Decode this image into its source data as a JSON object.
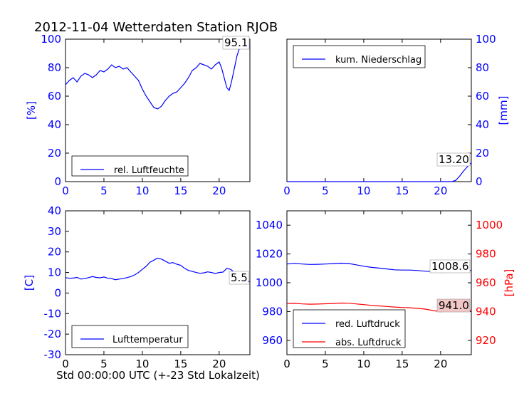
{
  "figure": {
    "title": "2012-11-04 Wetterdaten Station RJOB",
    "xlabel": "Std 00:00:00 UTC (+-23 Std Lokalzeit)"
  },
  "colors": {
    "blue": "#0000ff",
    "red": "#ff0000",
    "black": "#000000",
    "annot_pink": "#f4c7c7"
  },
  "chart_data": [
    {
      "id": "humidity",
      "type": "line",
      "ylabel": "[%]",
      "xlim": [
        0,
        24
      ],
      "ylim": [
        0,
        100
      ],
      "xticks": [
        "0",
        "5",
        "10",
        "15",
        "20"
      ],
      "yticks": [
        "0",
        "20",
        "40",
        "60",
        "80",
        "100"
      ],
      "legend": {
        "location": "lower-left",
        "entries": [
          "rel. Luftfeuchte"
        ]
      },
      "annotation": "95.1",
      "series": [
        {
          "name": "rel. Luftfeuchte",
          "color": "#0000ff",
          "x": [
            0,
            0.5,
            1,
            1.5,
            2,
            2.5,
            3,
            3.5,
            4,
            4.5,
            5,
            5.5,
            6,
            6.5,
            7,
            7.5,
            8,
            8.5,
            9,
            9.5,
            10,
            10.5,
            11,
            11.5,
            12,
            12.5,
            13,
            13.5,
            14,
            14.5,
            15,
            15.5,
            16,
            16.5,
            17,
            17.5,
            18,
            18.5,
            19,
            19.5,
            20,
            20.3,
            20.6,
            21,
            21.3,
            21.6,
            22,
            22.3,
            22.6,
            23,
            23.5,
            24
          ],
          "y": [
            68,
            71,
            73,
            70,
            74,
            76,
            75,
            73,
            75,
            78,
            77,
            79,
            82,
            80,
            81,
            79,
            80,
            77,
            74,
            71,
            65,
            60,
            56,
            52,
            51,
            53,
            57,
            60,
            62,
            63,
            66,
            69,
            73,
            78,
            80,
            83,
            82,
            81,
            79,
            82,
            84,
            80,
            74,
            66,
            64,
            70,
            80,
            88,
            93,
            95,
            95.1,
            95
          ]
        }
      ]
    },
    {
      "id": "precipitation",
      "type": "line",
      "ylabel": "[mm]",
      "xlim": [
        0,
        24
      ],
      "ylim": [
        0,
        100
      ],
      "xticks": [
        "0",
        "5",
        "10",
        "15",
        "20"
      ],
      "yticks": [
        "0",
        "20",
        "40",
        "60",
        "80",
        "100"
      ],
      "legend": {
        "location": "upper-left",
        "entries": [
          "kum. Niederschlag"
        ]
      },
      "annotation": "13.20",
      "series": [
        {
          "name": "kum. Niederschlag",
          "color": "#0000ff",
          "x": [
            0,
            5,
            10,
            15,
            20,
            21.5,
            22,
            22.5,
            23,
            23.5,
            24
          ],
          "y": [
            0,
            0,
            0,
            0,
            0,
            0,
            1,
            4,
            7.5,
            10.5,
            13.2
          ]
        }
      ]
    },
    {
      "id": "temperature",
      "type": "line",
      "ylabel": "[C]",
      "xlim": [
        0,
        24
      ],
      "ylim": [
        -30,
        40
      ],
      "xticks": [
        "0",
        "5",
        "10",
        "15",
        "20"
      ],
      "yticks": [
        "-30",
        "-20",
        "-10",
        "0",
        "10",
        "20",
        "30",
        "40"
      ],
      "legend": {
        "location": "lower-left",
        "entries": [
          "Lufttemperatur"
        ]
      },
      "annotation": "5.5",
      "series": [
        {
          "name": "Lufttemperatur",
          "color": "#0000ff",
          "x": [
            0,
            0.5,
            1,
            1.5,
            2,
            2.5,
            3,
            3.5,
            4,
            4.5,
            5,
            5.5,
            6,
            6.5,
            7,
            7.5,
            8,
            8.5,
            9,
            9.5,
            10,
            10.5,
            11,
            11.5,
            12,
            12.5,
            13,
            13.5,
            14,
            14.5,
            15,
            15.5,
            16,
            16.5,
            17,
            17.5,
            18,
            18.5,
            19,
            19.5,
            20,
            20.5,
            21,
            21.5,
            22,
            22.5,
            23,
            23.5,
            24
          ],
          "y": [
            7.5,
            7.2,
            7.3,
            7.6,
            6.8,
            7.0,
            7.5,
            8.0,
            7.6,
            7.4,
            7.8,
            7.2,
            7.0,
            6.5,
            6.8,
            7.0,
            7.5,
            8.0,
            8.8,
            10.0,
            11.5,
            13.0,
            15.0,
            16.0,
            17.0,
            16.5,
            15.5,
            14.5,
            14.8,
            14.0,
            13.5,
            12.0,
            11.0,
            10.5,
            10.0,
            9.6,
            9.8,
            10.3,
            10.0,
            9.5,
            10.0,
            10.2,
            12.0,
            11.5,
            10.0,
            8.5,
            7.0,
            6.2,
            5.5
          ]
        }
      ]
    },
    {
      "id": "pressure",
      "type": "line",
      "ylabel_right": "[hPa]",
      "xlim": [
        0,
        24
      ],
      "ylim_left": [
        950,
        1050
      ],
      "ylim_right": [
        910,
        1010
      ],
      "xticks": [
        "0",
        "5",
        "10",
        "15",
        "20"
      ],
      "yticks_left": [
        "960",
        "980",
        "1000",
        "1020",
        "1040"
      ],
      "yticks_right": [
        "920",
        "940",
        "960",
        "980",
        "1000"
      ],
      "legend": {
        "location": "lower-left",
        "entries": [
          "red. Luftdruck",
          "abs. Luftdruck"
        ]
      },
      "annotations": [
        "1008.6",
        "941.0"
      ],
      "series": [
        {
          "name": "red. Luftdruck",
          "color": "#0000ff",
          "axis": "left",
          "x": [
            0,
            1,
            2,
            3,
            4,
            5,
            6,
            7,
            8,
            9,
            10,
            11,
            12,
            13,
            14,
            15,
            16,
            17,
            18,
            19,
            20,
            21,
            22,
            23,
            24
          ],
          "y": [
            1013,
            1013.5,
            1013,
            1012.7,
            1012.8,
            1013,
            1013.3,
            1013.6,
            1013.4,
            1012.5,
            1011.5,
            1010.7,
            1010.2,
            1009.6,
            1009.0,
            1008.8,
            1008.8,
            1008.5,
            1008.0,
            1007.8,
            1007.2,
            1007.3,
            1007.6,
            1008.2,
            1008.6
          ]
        },
        {
          "name": "abs. Luftdruck",
          "color": "#ff0000",
          "axis": "right",
          "x": [
            0,
            1,
            2,
            3,
            4,
            5,
            6,
            7,
            8,
            9,
            10,
            11,
            12,
            13,
            14,
            15,
            16,
            17,
            18,
            19,
            20,
            21,
            22,
            23,
            24
          ],
          "y": [
            945.6,
            945.7,
            945.3,
            945.1,
            945.2,
            945.4,
            945.6,
            945.9,
            945.8,
            945.3,
            944.8,
            944.3,
            943.9,
            943.5,
            943.1,
            942.8,
            942.6,
            942.2,
            941.7,
            940.7,
            939.9,
            940.3,
            940.6,
            940.8,
            941.0
          ]
        }
      ]
    }
  ]
}
